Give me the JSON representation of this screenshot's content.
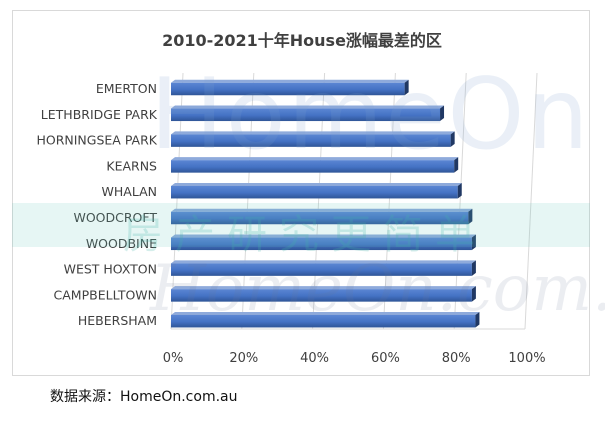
{
  "chart_data": {
    "type": "bar",
    "orientation": "horizontal",
    "title": "2010-2021十年House涨幅最差的区",
    "categories": [
      "EMERTON",
      "LETHBRIDGE PARK",
      "HORNINGSEA PARK",
      "KEARNS",
      "WHALAN",
      "WOODCROFT",
      "WOODBINE",
      "WEST HOXTON",
      "CAMPBELLTOWN",
      "HEBERSHAM"
    ],
    "values": [
      66,
      76,
      79,
      80,
      81,
      84,
      85,
      85,
      85,
      86
    ],
    "xlim": [
      0,
      100
    ],
    "xticks": [
      "0%",
      "20%",
      "40%",
      "60%",
      "80%",
      "100%"
    ],
    "grid": true,
    "bar_color": "#4472c4"
  },
  "watermarks": {
    "brand": "HomeOn",
    "slogan": "房产研究更简单",
    "url": "HomeOn.com.au"
  },
  "source": "数据来源：HomeOn.com.au"
}
